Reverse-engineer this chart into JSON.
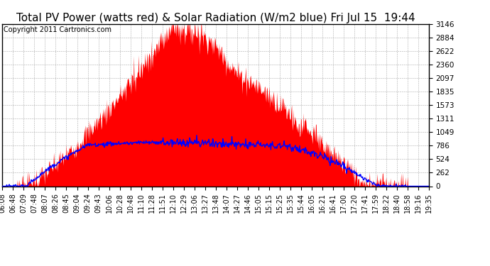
{
  "title": "Total PV Power (watts red) & Solar Radiation (W/m2 blue) Fri Jul 15  19:44",
  "copyright": "Copyright 2011 Cartronics.com",
  "y_max": 3146.0,
  "y_ticks": [
    0.0,
    262.2,
    524.3,
    786.5,
    1048.7,
    1310.8,
    1573.0,
    1835.2,
    2097.4,
    2359.5,
    2621.7,
    2883.9,
    3146.0
  ],
  "x_labels": [
    "06:08",
    "06:48",
    "07:09",
    "07:48",
    "08:07",
    "08:26",
    "08:45",
    "09:04",
    "09:24",
    "09:43",
    "10:06",
    "10:28",
    "10:48",
    "11:10",
    "11:28",
    "11:51",
    "12:10",
    "12:29",
    "13:06",
    "13:27",
    "13:48",
    "14:07",
    "14:27",
    "14:46",
    "15:05",
    "15:15",
    "15:25",
    "15:35",
    "15:44",
    "16:05",
    "16:21",
    "16:41",
    "17:00",
    "17:20",
    "17:41",
    "17:59",
    "18:22",
    "18:40",
    "18:58",
    "19:16",
    "19:35"
  ],
  "background_color": "#ffffff",
  "plot_bg_color": "#ffffff",
  "red_fill_color": "#ff0000",
  "blue_line_color": "#0000ff",
  "grid_color": "#888888",
  "title_fontsize": 11,
  "tick_fontsize": 7.5,
  "copyright_fontsize": 7
}
